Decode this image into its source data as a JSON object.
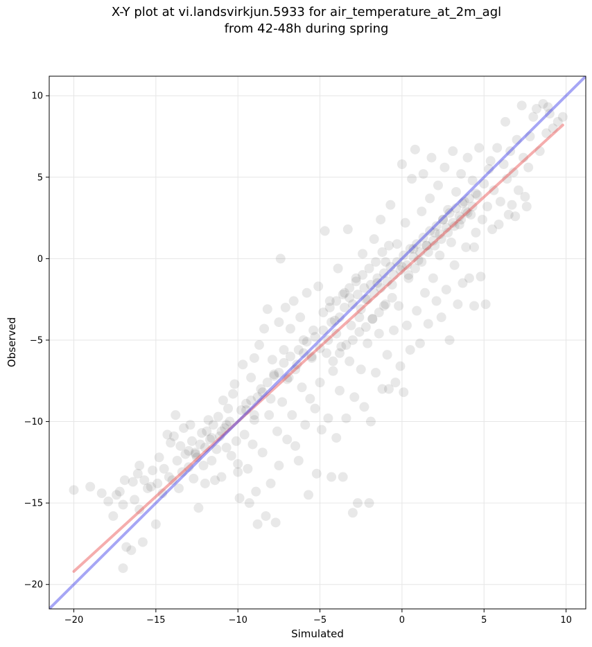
{
  "chart_data": {
    "type": "scatter",
    "title_lines": [
      "X-Y plot at vi.landsvirkjun.5933 for air_temperature_at_2m_agl",
      "from 42-48h during spring"
    ],
    "xlabel": "Simulated",
    "ylabel": "Observed",
    "xlim": [
      -21.5,
      11.2
    ],
    "ylim": [
      -21.5,
      11.2
    ],
    "xticks": [
      -20,
      -15,
      -10,
      -5,
      0,
      5,
      10
    ],
    "yticks": [
      -20,
      -15,
      -10,
      -5,
      0,
      5,
      10
    ],
    "xtick_labels": [
      "−20",
      "−15",
      "−10",
      "−5",
      "0",
      "5",
      "10"
    ],
    "ytick_labels": [
      "−20",
      "−15",
      "−10",
      "−5",
      "0",
      "5",
      "10"
    ],
    "grid": true,
    "point_color": "#000000",
    "point_alpha": 0.09,
    "lines": [
      {
        "kind": "fit",
        "color": "#e84a4a",
        "x": [
          -20.0,
          9.8
        ],
        "y": [
          -19.2,
          8.2
        ]
      },
      {
        "kind": "identity",
        "color": "#3a3ae8",
        "x": [
          -21.5,
          11.2
        ],
        "y": [
          -21.5,
          11.2
        ]
      }
    ],
    "points": [
      [
        -20.0,
        -14.2
      ],
      [
        -19.0,
        -14.0
      ],
      [
        -18.3,
        -14.4
      ],
      [
        -17.9,
        -14.9
      ],
      [
        -17.6,
        -15.8
      ],
      [
        -17.4,
        -14.5
      ],
      [
        -17.2,
        -14.3
      ],
      [
        -17.0,
        -15.1
      ],
      [
        -17.0,
        -19.0
      ],
      [
        -16.9,
        -13.6
      ],
      [
        -16.8,
        -17.7
      ],
      [
        -16.5,
        -17.9
      ],
      [
        -16.4,
        -13.7
      ],
      [
        -16.3,
        -14.8
      ],
      [
        -16.1,
        -13.2
      ],
      [
        -16.0,
        -15.4
      ],
      [
        -16.0,
        -12.7
      ],
      [
        -15.8,
        -17.4
      ],
      [
        -15.7,
        -13.6
      ],
      [
        -15.5,
        -14.1
      ],
      [
        -15.3,
        -14.0
      ],
      [
        -15.2,
        -13.0
      ],
      [
        -15.0,
        -16.3
      ],
      [
        -14.9,
        -13.8
      ],
      [
        -14.8,
        -12.2
      ],
      [
        -14.6,
        -14.4
      ],
      [
        -14.5,
        -12.9
      ],
      [
        -14.3,
        -10.8
      ],
      [
        -14.2,
        -13.4
      ],
      [
        -14.1,
        -11.3
      ],
      [
        -14.0,
        -13.6
      ],
      [
        -13.9,
        -10.9
      ],
      [
        -13.8,
        -9.6
      ],
      [
        -13.7,
        -12.4
      ],
      [
        -13.6,
        -14.1
      ],
      [
        -13.5,
        -11.5
      ],
      [
        -13.4,
        -13.1
      ],
      [
        -13.3,
        -10.4
      ],
      [
        -13.2,
        -12.0
      ],
      [
        -13.0,
        -11.8
      ],
      [
        -12.9,
        -10.2
      ],
      [
        -12.8,
        -11.2
      ],
      [
        -12.7,
        -13.5
      ],
      [
        -12.6,
        -11.9
      ],
      [
        -12.5,
        -12.2
      ],
      [
        -12.4,
        -15.3
      ],
      [
        -12.3,
        -11.4
      ],
      [
        -12.2,
        -10.7
      ],
      [
        -12.1,
        -12.7
      ],
      [
        -12.0,
        -13.8
      ],
      [
        -11.9,
        -10.6
      ],
      [
        -11.8,
        -9.9
      ],
      [
        -11.7,
        -11.1
      ],
      [
        -11.6,
        -12.4
      ],
      [
        -11.5,
        -10.2
      ],
      [
        -11.4,
        -13.6
      ],
      [
        -11.3,
        -11.7
      ],
      [
        -11.2,
        -9.7
      ],
      [
        -11.1,
        -10.9
      ],
      [
        -11.0,
        -13.4
      ],
      [
        -10.9,
        -8.7
      ],
      [
        -10.8,
        -10.4
      ],
      [
        -10.7,
        -11.6
      ],
      [
        -10.6,
        -9.2
      ],
      [
        -10.5,
        -10.0
      ],
      [
        -10.4,
        -12.1
      ],
      [
        -10.3,
        -8.3
      ],
      [
        -10.2,
        -7.7
      ],
      [
        -10.1,
        -11.2
      ],
      [
        -10.0,
        -12.6
      ],
      [
        -10.0,
        -13.1
      ],
      [
        -9.9,
        -14.7
      ],
      [
        -9.8,
        -9.3
      ],
      [
        -9.7,
        -6.5
      ],
      [
        -9.6,
        -10.8
      ],
      [
        -9.5,
        -8.9
      ],
      [
        -9.4,
        -12.9
      ],
      [
        -9.3,
        -15.0
      ],
      [
        -9.2,
        -7.3
      ],
      [
        -9.1,
        -11.4
      ],
      [
        -9.0,
        -9.9
      ],
      [
        -9.0,
        -6.1
      ],
      [
        -8.9,
        -14.3
      ],
      [
        -8.8,
        -16.3
      ],
      [
        -8.7,
        -5.3
      ],
      [
        -8.6,
        -8.0
      ],
      [
        -8.5,
        -11.9
      ],
      [
        -8.4,
        -4.3
      ],
      [
        -8.3,
        -15.8
      ],
      [
        -8.2,
        -3.1
      ],
      [
        -8.1,
        -9.6
      ],
      [
        -8.0,
        -13.8
      ],
      [
        -7.9,
        -6.2
      ],
      [
        -7.8,
        -7.1
      ],
      [
        -7.7,
        -16.2
      ],
      [
        -7.6,
        -10.6
      ],
      [
        -7.5,
        -3.9
      ],
      [
        -7.5,
        -12.7
      ],
      [
        -7.4,
        0.0
      ],
      [
        -7.3,
        -8.8
      ],
      [
        -7.2,
        -5.6
      ],
      [
        -7.1,
        -3.0
      ],
      [
        -7.0,
        -11.1
      ],
      [
        -6.9,
        -7.3
      ],
      [
        -6.8,
        -4.3
      ],
      [
        -6.7,
        -9.6
      ],
      [
        -6.6,
        -2.6
      ],
      [
        -6.5,
        -11.5
      ],
      [
        -6.4,
        -6.5
      ],
      [
        -6.3,
        -12.4
      ],
      [
        -6.2,
        -3.6
      ],
      [
        -6.1,
        -7.9
      ],
      [
        -6.0,
        -5.0
      ],
      [
        -5.9,
        -10.2
      ],
      [
        -5.8,
        -2.1
      ],
      [
        -5.7,
        -14.5
      ],
      [
        -5.6,
        -8.6
      ],
      [
        -5.5,
        -6.1
      ],
      [
        -5.4,
        -4.4
      ],
      [
        -5.3,
        -9.2
      ],
      [
        -5.2,
        -13.2
      ],
      [
        -5.1,
        -1.7
      ],
      [
        -5.0,
        -7.6
      ],
      [
        -4.9,
        -10.5
      ],
      [
        -4.8,
        -3.3
      ],
      [
        -4.7,
        1.7
      ],
      [
        -4.6,
        -5.8
      ],
      [
        -4.5,
        -9.8
      ],
      [
        -4.4,
        -2.6
      ],
      [
        -4.3,
        -13.4
      ],
      [
        -4.2,
        -6.9
      ],
      [
        -4.1,
        -3.8
      ],
      [
        -4.0,
        -11.0
      ],
      [
        -3.9,
        -0.6
      ],
      [
        -3.8,
        -8.1
      ],
      [
        -3.7,
        -5.4
      ],
      [
        -3.6,
        -13.4
      ],
      [
        -3.5,
        -2.1
      ],
      [
        -3.4,
        -9.8
      ],
      [
        -3.3,
        1.8
      ],
      [
        -3.2,
        -6.3
      ],
      [
        -3.1,
        -4.1
      ],
      [
        -3.0,
        -15.6
      ],
      [
        -2.9,
        -8.5
      ],
      [
        -2.8,
        -1.2
      ],
      [
        -2.7,
        -15.0
      ],
      [
        -2.6,
        -3.6
      ],
      [
        -2.5,
        -6.8
      ],
      [
        -2.4,
        0.3
      ],
      [
        -2.3,
        -9.1
      ],
      [
        -2.2,
        -2.5
      ],
      [
        -2.1,
        -5.2
      ],
      [
        -2.0,
        -15.0
      ],
      [
        -1.9,
        -10.0
      ],
      [
        -1.8,
        -3.7
      ],
      [
        -1.7,
        1.2
      ],
      [
        -1.6,
        -7.0
      ],
      [
        -1.5,
        -1.5
      ],
      [
        -1.4,
        -4.6
      ],
      [
        -1.3,
        2.4
      ],
      [
        -1.2,
        -8.0
      ],
      [
        -1.1,
        -2.9
      ],
      [
        -1.0,
        -0.2
      ],
      [
        -0.9,
        -5.9
      ],
      [
        -0.8,
        -8.0
      ],
      [
        -0.7,
        3.3
      ],
      [
        -0.6,
        -1.6
      ],
      [
        -0.5,
        -4.4
      ],
      [
        -0.4,
        -7.6
      ],
      [
        -0.3,
        0.9
      ],
      [
        -0.2,
        -2.9
      ],
      [
        -0.1,
        -6.6
      ],
      [
        0.0,
        5.8
      ],
      [
        0.0,
        -0.5
      ],
      [
        0.1,
        -8.2
      ],
      [
        0.2,
        2.2
      ],
      [
        0.3,
        -4.1
      ],
      [
        0.4,
        -1.0
      ],
      [
        0.5,
        -5.6
      ],
      [
        0.6,
        4.9
      ],
      [
        0.7,
        0.6
      ],
      [
        0.8,
        6.7
      ],
      [
        0.9,
        -3.2
      ],
      [
        1.0,
        -0.1
      ],
      [
        1.1,
        -5.2
      ],
      [
        1.2,
        2.9
      ],
      [
        1.3,
        5.2
      ],
      [
        1.4,
        -2.1
      ],
      [
        1.5,
        0.8
      ],
      [
        1.6,
        -4.0
      ],
      [
        1.7,
        3.7
      ],
      [
        1.8,
        6.2
      ],
      [
        1.9,
        -1.2
      ],
      [
        2.0,
        1.6
      ],
      [
        2.1,
        -2.6
      ],
      [
        2.2,
        4.5
      ],
      [
        2.3,
        0.2
      ],
      [
        2.4,
        -3.6
      ],
      [
        2.5,
        2.4
      ],
      [
        2.6,
        5.6
      ],
      [
        2.7,
        -1.9
      ],
      [
        2.8,
        3.0
      ],
      [
        2.9,
        -5.0
      ],
      [
        3.0,
        1.0
      ],
      [
        3.1,
        6.6
      ],
      [
        3.2,
        -0.4
      ],
      [
        3.3,
        4.1
      ],
      [
        3.4,
        -2.8
      ],
      [
        3.5,
        2.1
      ],
      [
        3.6,
        5.2
      ],
      [
        3.7,
        -1.5
      ],
      [
        3.8,
        3.5
      ],
      [
        3.9,
        0.7
      ],
      [
        4.0,
        6.2
      ],
      [
        4.1,
        -1.2
      ],
      [
        4.2,
        2.7
      ],
      [
        4.3,
        4.8
      ],
      [
        4.4,
        -2.9
      ],
      [
        4.5,
        1.6
      ],
      [
        4.6,
        3.9
      ],
      [
        4.7,
        6.8
      ],
      [
        4.8,
        -1.1
      ],
      [
        4.9,
        2.4
      ],
      [
        5.0,
        4.6
      ],
      [
        5.1,
        -2.8
      ],
      [
        5.2,
        3.2
      ],
      [
        5.3,
        5.5
      ],
      [
        5.5,
        1.8
      ],
      [
        5.6,
        4.2
      ],
      [
        5.8,
        6.8
      ],
      [
        5.9,
        2.1
      ],
      [
        6.0,
        3.5
      ],
      [
        6.2,
        5.8
      ],
      [
        6.4,
        4.9
      ],
      [
        6.5,
        2.7
      ],
      [
        6.6,
        6.6
      ],
      [
        6.7,
        3.3
      ],
      [
        6.8,
        5.3
      ],
      [
        7.0,
        7.3
      ],
      [
        7.1,
        4.2
      ],
      [
        7.3,
        9.4
      ],
      [
        7.4,
        6.2
      ],
      [
        7.5,
        3.8
      ],
      [
        7.7,
        5.6
      ],
      [
        7.8,
        7.5
      ],
      [
        8.0,
        8.7
      ],
      [
        8.2,
        9.2
      ],
      [
        8.4,
        6.6
      ],
      [
        8.6,
        9.5
      ],
      [
        8.8,
        7.7
      ],
      [
        9.0,
        8.9
      ],
      [
        9.2,
        8.0
      ],
      [
        9.5,
        8.4
      ],
      [
        9.8,
        8.7
      ],
      [
        8.9,
        9.3
      ],
      [
        7.6,
        3.2
      ],
      [
        6.9,
        2.6
      ],
      [
        6.3,
        8.4
      ],
      [
        5.4,
        6.0
      ],
      [
        4.4,
        0.7
      ],
      [
        -3.5,
        -3.0
      ],
      [
        -3.2,
        -2.4
      ],
      [
        -3.0,
        -2.8
      ],
      [
        -2.7,
        -2.2
      ],
      [
        -2.5,
        -3.1
      ],
      [
        -2.3,
        -1.8
      ],
      [
        -2.1,
        -2.5
      ],
      [
        -1.9,
        -1.6
      ],
      [
        -1.7,
        -2.1
      ],
      [
        -1.5,
        -1.2
      ],
      [
        -1.3,
        -1.8
      ],
      [
        -1.1,
        -0.9
      ],
      [
        -0.9,
        -1.4
      ],
      [
        -0.7,
        -0.5
      ],
      [
        -0.5,
        -1.0
      ],
      [
        -0.3,
        -0.2
      ],
      [
        -0.1,
        -0.7
      ],
      [
        0.1,
        0.2
      ],
      [
        0.3,
        -0.4
      ],
      [
        0.5,
        0.6
      ],
      [
        0.7,
        0.1
      ],
      [
        0.9,
        0.9
      ],
      [
        1.1,
        0.4
      ],
      [
        1.3,
        1.3
      ],
      [
        1.5,
        0.8
      ],
      [
        1.7,
        1.7
      ],
      [
        1.9,
        1.1
      ],
      [
        2.1,
        2.0
      ],
      [
        2.3,
        1.5
      ],
      [
        2.5,
        2.4
      ],
      [
        2.7,
        1.9
      ],
      [
        2.9,
        2.8
      ],
      [
        3.1,
        2.2
      ],
      [
        3.3,
        3.1
      ],
      [
        3.5,
        2.6
      ],
      [
        3.7,
        3.4
      ],
      [
        3.9,
        2.9
      ],
      [
        4.1,
        3.7
      ],
      [
        4.3,
        3.2
      ],
      [
        4.5,
        4.0
      ],
      [
        -6.0,
        -5.8
      ],
      [
        -5.8,
        -5.1
      ],
      [
        -5.5,
        -6.0
      ],
      [
        -5.3,
        -4.8
      ],
      [
        -5.0,
        -5.5
      ],
      [
        -4.8,
        -4.4
      ],
      [
        -4.5,
        -5.0
      ],
      [
        -4.3,
        -3.9
      ],
      [
        -4.0,
        -4.6
      ],
      [
        -3.8,
        -3.6
      ],
      [
        -7.5,
        -7.0
      ],
      [
        -7.2,
        -6.4
      ],
      [
        -7.0,
        -7.4
      ],
      [
        -6.8,
        -6.0
      ],
      [
        -6.5,
        -6.8
      ],
      [
        -6.3,
        -5.6
      ],
      [
        -8.5,
        -8.2
      ],
      [
        -8.2,
        -7.6
      ],
      [
        -8.0,
        -8.6
      ],
      [
        -7.8,
        -7.2
      ],
      [
        -9.5,
        -9.3
      ],
      [
        -9.2,
        -8.7
      ],
      [
        -9.0,
        -9.6
      ],
      [
        -8.8,
        -8.5
      ],
      [
        -11.0,
        -10.6
      ],
      [
        -10.7,
        -10.2
      ],
      [
        -12.0,
        -11.6
      ],
      [
        -11.6,
        -11.0
      ],
      [
        -13.0,
        -12.8
      ],
      [
        -12.6,
        -12.0
      ],
      [
        2.0,
        0.8
      ],
      [
        2.4,
        1.2
      ],
      [
        2.8,
        1.6
      ],
      [
        3.2,
        2.0
      ],
      [
        3.6,
        2.4
      ],
      [
        4.0,
        2.8
      ],
      [
        1.6,
        0.4
      ],
      [
        1.2,
        -0.2
      ],
      [
        0.8,
        -0.6
      ],
      [
        0.4,
        -1.2
      ],
      [
        -0.6,
        -2.4
      ],
      [
        -1.0,
        -2.8
      ],
      [
        -1.4,
        -3.3
      ],
      [
        -1.8,
        -3.7
      ],
      [
        -2.2,
        -4.2
      ],
      [
        -2.6,
        -4.5
      ],
      [
        -3.0,
        -5.0
      ],
      [
        -3.4,
        -5.3
      ],
      [
        -3.8,
        -5.8
      ],
      [
        -4.2,
        -6.3
      ],
      [
        -0.8,
        0.8
      ],
      [
        -1.2,
        0.4
      ],
      [
        -1.6,
        -0.2
      ],
      [
        -2.0,
        -0.6
      ],
      [
        -2.4,
        -1.0
      ],
      [
        -2.8,
        -1.4
      ],
      [
        -3.2,
        -1.8
      ],
      [
        -3.6,
        -2.2
      ],
      [
        -4.0,
        -2.6
      ],
      [
        -4.4,
        -3.0
      ]
    ]
  }
}
